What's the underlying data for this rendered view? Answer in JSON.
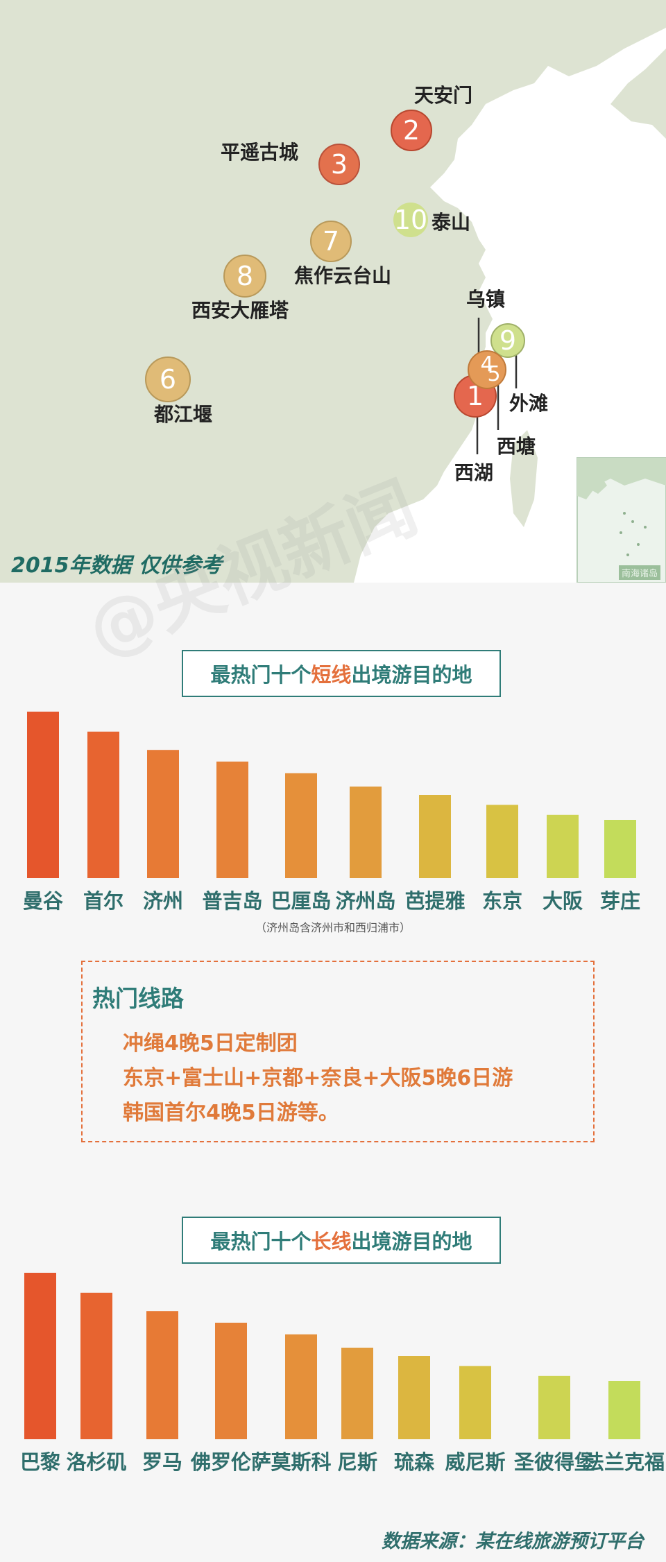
{
  "map": {
    "note": "2015年数据 仅供参考",
    "inset_label": "南海诸岛",
    "colors": {
      "land": "#dde3d2",
      "sea": "#ffffff",
      "inset_land": "#c9dcc3",
      "inset_bg": "#ecf3ec"
    },
    "places": [
      {
        "rank": "1",
        "name": "西湖",
        "color": "#e4674e"
      },
      {
        "rank": "2",
        "name": "天安门",
        "color": "#e4674e"
      },
      {
        "rank": "3",
        "name": "平遥古城",
        "color": "#e3714d"
      },
      {
        "rank": "4",
        "name": "乌镇",
        "color": "#e49a57"
      },
      {
        "rank": "5",
        "name": "西塘",
        "color": "#e49a57"
      },
      {
        "rank": "6",
        "name": "都江堰",
        "color": "#e0bb77"
      },
      {
        "rank": "7",
        "name": "焦作云台山",
        "color": "#e0bb77"
      },
      {
        "rank": "8",
        "name": "西安大雁塔",
        "color": "#e0bb77"
      },
      {
        "rank": "9",
        "name": "外滩",
        "color": "#cfe08d"
      },
      {
        "rank": "10",
        "name": "泰山",
        "color": "#cfe08d"
      }
    ]
  },
  "watermark": "@央视新闻",
  "short_chart": {
    "title_pre": "最热门十个",
    "title_hl": "短线",
    "title_post": "出境游目的地",
    "note": "（济州岛含济州市和西归浦市）"
  },
  "routes": {
    "heading": "热门线路",
    "lines": [
      "冲绳4晚5日定制团",
      "东京+富士山+京都+奈良+大阪5晚6日游",
      "韩国首尔4晚5日游等。"
    ]
  },
  "long_chart": {
    "title_pre": "最热门十个",
    "title_hl": "长线",
    "title_post": "出境游目的地"
  },
  "source": "数据来源：某在线旅游预订平台",
  "chart_data": [
    {
      "type": "bar",
      "title": "最热门十个短线出境游目的地",
      "categories": [
        "曼谷",
        "首尔",
        "济州",
        "普吉岛",
        "巴厘岛",
        "济州岛",
        "芭提雅",
        "东京",
        "大阪",
        "芽庄"
      ],
      "values": [
        100,
        88,
        77,
        70,
        63,
        55,
        50,
        44,
        38,
        35
      ],
      "colors": [
        "#e5562c",
        "#e76430",
        "#e77a35",
        "#e68238",
        "#e5903a",
        "#e29c3d",
        "#dcb640",
        "#d8c243",
        "#cdd452",
        "#c3dc5b"
      ],
      "ylim": [
        0,
        100
      ],
      "grid": false,
      "legend": "none"
    },
    {
      "type": "bar",
      "title": "最热门十个长线出境游目的地",
      "categories": [
        "巴黎",
        "洛杉矶",
        "罗马",
        "佛罗伦萨",
        "莫斯科",
        "尼斯",
        "琉森",
        "威尼斯",
        "圣彼得堡",
        "法兰克福"
      ],
      "values": [
        100,
        88,
        77,
        70,
        63,
        55,
        50,
        44,
        38,
        35
      ],
      "colors": [
        "#e5562c",
        "#e76430",
        "#e77a35",
        "#e68238",
        "#e5903a",
        "#e29c3d",
        "#dcb640",
        "#d8c243",
        "#cdd452",
        "#c3dc5b"
      ],
      "ylim": [
        0,
        100
      ],
      "grid": false,
      "legend": "none"
    }
  ]
}
